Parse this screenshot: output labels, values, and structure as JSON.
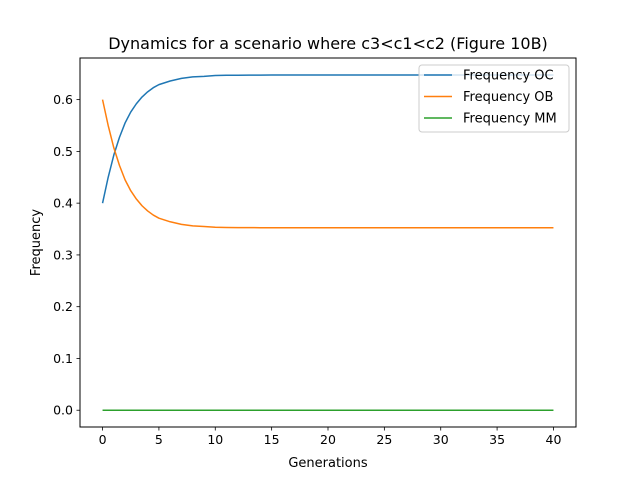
{
  "chart_data": {
    "type": "line",
    "title": "Dynamics for a scenario where c3<c1<c2 (Figure 10B)",
    "xlabel": "Generations",
    "ylabel": "Frequency",
    "xlim": [
      -2,
      42
    ],
    "ylim": [
      -0.0324,
      0.6804
    ],
    "xticks": [
      0,
      5,
      10,
      15,
      20,
      25,
      30,
      35,
      40
    ],
    "yticks": [
      0.0,
      0.1,
      0.2,
      0.3,
      0.4,
      0.5,
      0.6
    ],
    "xtick_labels": [
      "0",
      "5",
      "10",
      "15",
      "20",
      "25",
      "30",
      "35",
      "40"
    ],
    "ytick_labels": [
      "0.0",
      "0.1",
      "0.2",
      "0.3",
      "0.4",
      "0.5",
      "0.6"
    ],
    "x": [
      0,
      0.5,
      1,
      1.5,
      2,
      2.5,
      3,
      3.5,
      4,
      4.5,
      5,
      6,
      7,
      8,
      9,
      10,
      11,
      12,
      13,
      14,
      15,
      16,
      17,
      18,
      20,
      22,
      25,
      28,
      30,
      32,
      35,
      38,
      40
    ],
    "series": [
      {
        "name": "Frequency OC",
        "color": "#1f77b4",
        "values": [
          0.4,
          0.45,
          0.493,
          0.527,
          0.555,
          0.576,
          0.592,
          0.605,
          0.615,
          0.623,
          0.629,
          0.636,
          0.641,
          0.644,
          0.645,
          0.6465,
          0.647,
          0.6472,
          0.6473,
          0.6474,
          0.6475,
          0.6476,
          0.6476,
          0.6476,
          0.6476,
          0.6476,
          0.6476,
          0.6476,
          0.6476,
          0.6476,
          0.6476,
          0.6476,
          0.6476
        ]
      },
      {
        "name": "Frequency OB",
        "color": "#ff7f0e",
        "values": [
          0.6,
          0.55,
          0.507,
          0.473,
          0.445,
          0.424,
          0.408,
          0.395,
          0.385,
          0.377,
          0.371,
          0.364,
          0.359,
          0.356,
          0.355,
          0.3535,
          0.353,
          0.3528,
          0.3527,
          0.3526,
          0.3525,
          0.3524,
          0.3524,
          0.3524,
          0.3524,
          0.3524,
          0.3524,
          0.3524,
          0.3524,
          0.3524,
          0.3524,
          0.3524,
          0.3524
        ]
      },
      {
        "name": "Frequency MM",
        "color": "#2ca02c",
        "values": [
          0,
          0,
          0,
          0,
          0,
          0,
          0,
          0,
          0,
          0,
          0,
          0,
          0,
          0,
          0,
          0,
          0,
          0,
          0,
          0,
          0,
          0,
          0,
          0,
          0,
          0,
          0,
          0,
          0,
          0,
          0,
          0,
          0
        ]
      }
    ],
    "legend": {
      "placement": "top-right"
    },
    "grid": false
  }
}
